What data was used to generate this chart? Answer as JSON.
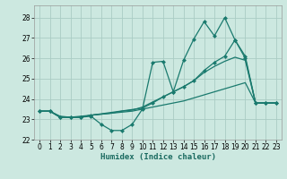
{
  "xlabel": "Humidex (Indice chaleur)",
  "bg_color": "#cce8e0",
  "grid_color": "#aaccC4",
  "line_color": "#1a7a6e",
  "xlim": [
    -0.5,
    23.5
  ],
  "ylim": [
    22,
    28.6
  ],
  "yticks": [
    22,
    23,
    24,
    25,
    26,
    27,
    28
  ],
  "xticks": [
    0,
    1,
    2,
    3,
    4,
    5,
    6,
    7,
    8,
    9,
    10,
    11,
    12,
    13,
    14,
    15,
    16,
    17,
    18,
    19,
    20,
    21,
    22,
    23
  ],
  "series1_x": [
    0,
    1,
    2,
    3,
    4,
    5,
    6,
    7,
    8,
    9,
    10,
    11,
    12,
    13,
    14,
    15,
    16,
    17,
    18,
    19,
    20,
    21,
    22,
    23
  ],
  "series1_y": [
    23.4,
    23.4,
    23.1,
    23.1,
    23.1,
    23.15,
    22.75,
    22.45,
    22.45,
    22.75,
    23.5,
    25.8,
    25.85,
    24.35,
    25.9,
    26.95,
    27.8,
    27.1,
    28.0,
    26.9,
    26.0,
    23.8,
    23.8,
    23.8
  ],
  "series2_x": [
    0,
    1,
    2,
    3,
    4,
    5,
    6,
    7,
    8,
    9,
    10,
    11,
    12,
    13,
    14,
    15,
    16,
    17,
    18,
    19,
    20,
    21,
    22,
    23
  ],
  "series2_y": [
    23.4,
    23.4,
    23.15,
    23.1,
    23.15,
    23.2,
    23.25,
    23.3,
    23.35,
    23.4,
    23.5,
    23.6,
    23.7,
    23.8,
    23.9,
    24.05,
    24.2,
    24.35,
    24.5,
    24.65,
    24.8,
    23.8,
    23.8,
    23.8
  ],
  "series3_x": [
    0,
    1,
    2,
    3,
    4,
    5,
    6,
    7,
    8,
    9,
    10,
    11,
    12,
    13,
    14,
    15,
    16,
    17,
    18,
    19,
    20,
    21,
    22,
    23
  ],
  "series3_y": [
    23.4,
    23.4,
    23.1,
    23.1,
    23.1,
    23.2,
    23.25,
    23.3,
    23.4,
    23.45,
    23.6,
    23.85,
    24.1,
    24.35,
    24.6,
    24.9,
    25.3,
    25.6,
    25.85,
    26.05,
    25.9,
    23.8,
    23.8,
    23.8
  ],
  "series4_x": [
    0,
    1,
    2,
    3,
    4,
    5,
    10,
    11,
    12,
    13,
    14,
    15,
    16,
    17,
    18,
    19,
    20,
    21,
    22,
    23
  ],
  "series4_y": [
    23.4,
    23.4,
    23.1,
    23.1,
    23.1,
    23.2,
    23.55,
    23.8,
    24.1,
    24.35,
    24.6,
    24.9,
    25.4,
    25.8,
    26.1,
    26.9,
    26.1,
    23.8,
    23.8,
    23.8
  ]
}
